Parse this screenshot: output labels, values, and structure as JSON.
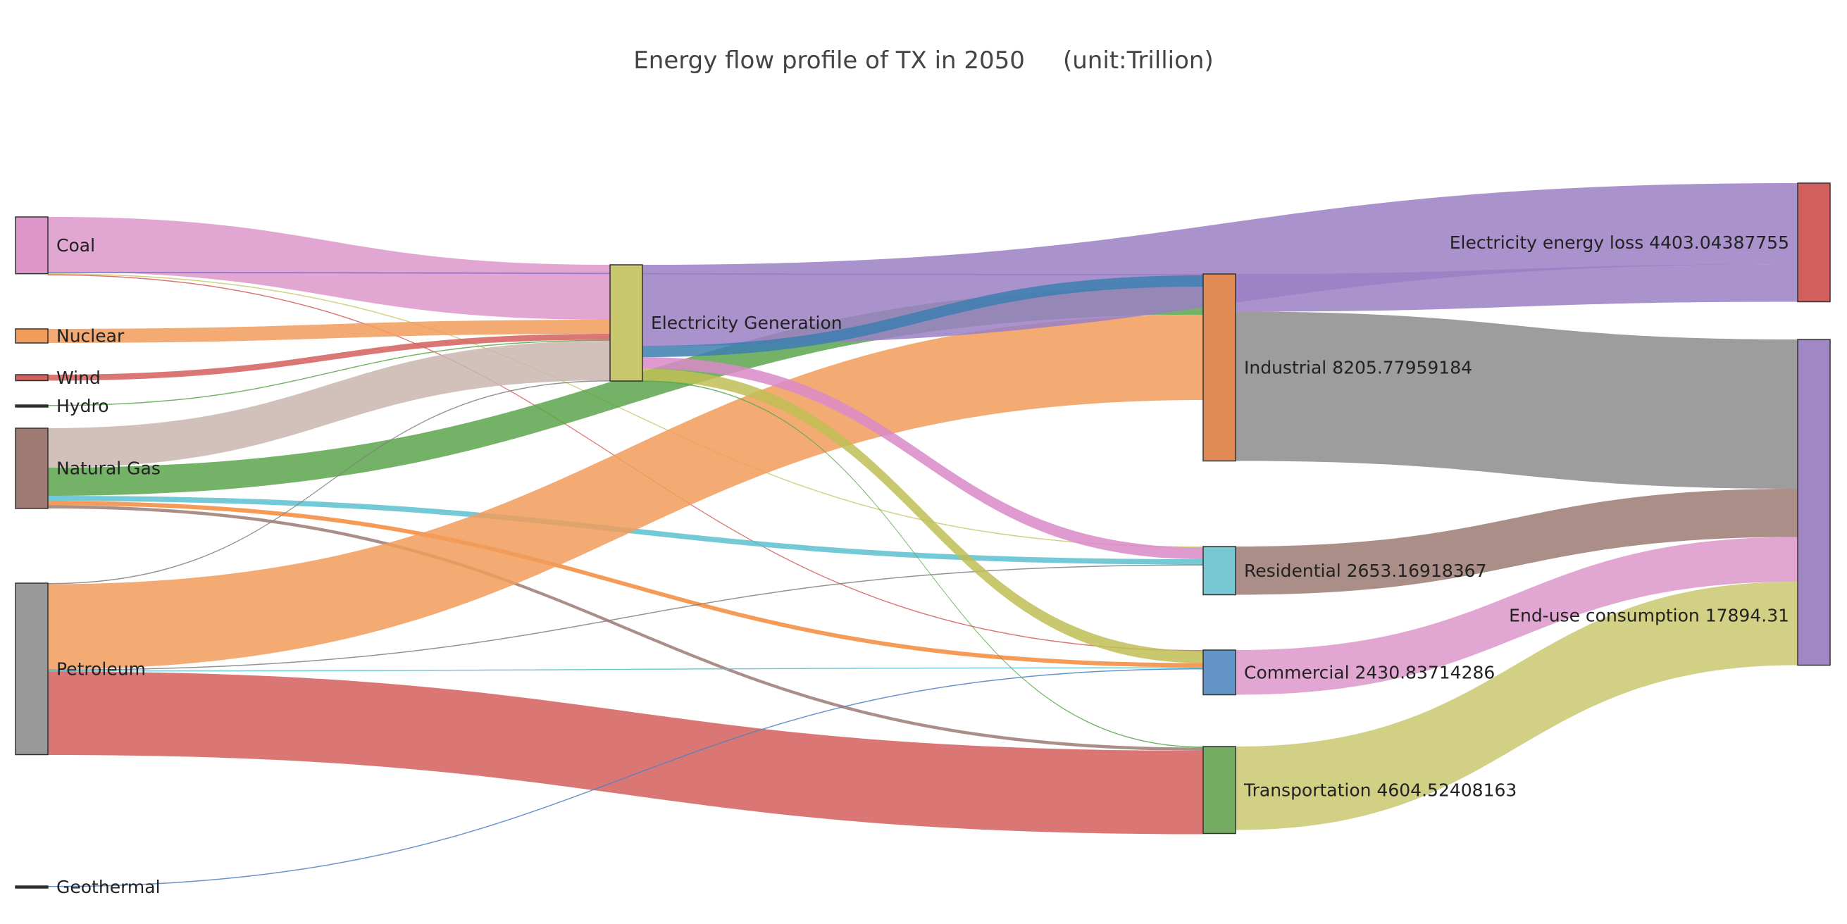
{
  "chart_data": {
    "type": "sankey",
    "title": "Energy flow profile of TX in 2050     (unit:Trillion)",
    "nodes": [
      {
        "id": "coal",
        "label": "Coal",
        "color": "#dc96c9"
      },
      {
        "id": "nuclear",
        "label": "Nuclear",
        "color": "#f29c5b"
      },
      {
        "id": "wind",
        "label": "Wind",
        "color": "#d35f5c"
      },
      {
        "id": "hydro",
        "label": "Hydro",
        "color": "#2b2b2b"
      },
      {
        "id": "gas",
        "label": "Natural Gas",
        "color": "#9e7a73"
      },
      {
        "id": "petroleum",
        "label": "Petroleum",
        "color": "#999999"
      },
      {
        "id": "geothermal",
        "label": "Geothermal",
        "color": "#2b2b2b"
      },
      {
        "id": "elec",
        "label": "Electricity Generation",
        "color": "#c9c86e"
      },
      {
        "id": "industrial",
        "label": "Industrial 8205.77959184",
        "color": "#e08a55"
      },
      {
        "id": "residential",
        "label": "Residential 2653.16918367",
        "color": "#78c8d3"
      },
      {
        "id": "commercial",
        "label": "Commercial 2430.83714286",
        "color": "#6294c6"
      },
      {
        "id": "transport",
        "label": "Transportation 4604.52408163",
        "color": "#74ad62"
      },
      {
        "id": "loss",
        "label": "Electricity energy loss 4403.04387755",
        "color": "#d35f5c"
      },
      {
        "id": "enduse",
        "label": "End-use consumption 17894.31",
        "color": "#a287c6"
      }
    ],
    "links": [
      {
        "source": "coal",
        "target": "elec",
        "value": 1560,
        "color": "#dc96c9"
      },
      {
        "source": "coal",
        "target": "industrial",
        "value": 40,
        "color": "#8f73c9"
      },
      {
        "source": "coal",
        "target": "residential",
        "value": 5,
        "color": "#c9c86e"
      },
      {
        "source": "coal",
        "target": "commercial",
        "value": 8,
        "color": "#d35f5c"
      },
      {
        "source": "nuclear",
        "target": "elec",
        "value": 400,
        "color": "#f29c5b"
      },
      {
        "source": "wind",
        "target": "elec",
        "value": 170,
        "color": "#d35f5c"
      },
      {
        "source": "hydro",
        "target": "elec",
        "value": 10,
        "color": "#59a84b"
      },
      {
        "source": "gas",
        "target": "elec",
        "value": 1120,
        "color": "#c9b6ae"
      },
      {
        "source": "gas",
        "target": "industrial",
        "value": 800,
        "color": "#5aa44c"
      },
      {
        "source": "gas",
        "target": "residential",
        "value": 150,
        "color": "#5bbfcf"
      },
      {
        "source": "gas",
        "target": "commercial",
        "value": 120,
        "color": "#f58a3a"
      },
      {
        "source": "gas",
        "target": "transport",
        "value": 90,
        "color": "#9e7a73"
      },
      {
        "source": "petroleum",
        "target": "elec",
        "value": 30,
        "color": "#808080"
      },
      {
        "source": "petroleum",
        "target": "industrial",
        "value": 2420,
        "color": "#f29c5b"
      },
      {
        "source": "petroleum",
        "target": "residential",
        "value": 25,
        "color": "#808080"
      },
      {
        "source": "petroleum",
        "target": "commercial",
        "value": 25,
        "color": "#5bbfcf"
      },
      {
        "source": "petroleum",
        "target": "transport",
        "value": 2370,
        "color": "#d35f5c"
      },
      {
        "source": "geothermal",
        "target": "commercial",
        "value": 5,
        "color": "#4f81bd"
      },
      {
        "source": "elec",
        "target": "loss",
        "value": 2300,
        "color": "#9b7fc4"
      },
      {
        "source": "elec",
        "target": "industrial",
        "value": 320,
        "color": "#3d7fb0"
      },
      {
        "source": "elec",
        "target": "residential",
        "value": 330,
        "color": "#d98ac8"
      },
      {
        "source": "elec",
        "target": "commercial",
        "value": 340,
        "color": "#bfbe55"
      },
      {
        "source": "elec",
        "target": "transport",
        "value": 10,
        "color": "#59a84b"
      },
      {
        "source": "industrial",
        "target": "loss",
        "value": 1070,
        "color": "#9b7fc4"
      },
      {
        "source": "industrial",
        "target": "enduse",
        "value": 4240,
        "color": "#8c8c8c"
      },
      {
        "source": "residential",
        "target": "enduse",
        "value": 1370,
        "color": "#9e7a73"
      },
      {
        "source": "commercial",
        "target": "enduse",
        "value": 1270,
        "color": "#dc96c9"
      },
      {
        "source": "transport",
        "target": "enduse",
        "value": 2370,
        "color": "#c9c86e"
      }
    ]
  }
}
